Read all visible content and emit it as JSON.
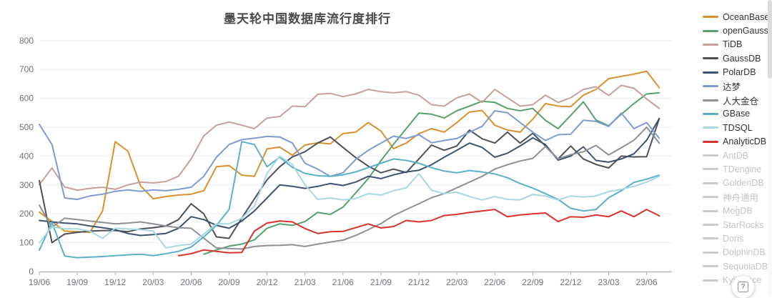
{
  "header": {
    "title": "墨天轮中国数据库流行度排行"
  },
  "help_button": {
    "label": "?"
  },
  "colors": {
    "grid": "#e8eef7",
    "axis": "#aaadb3",
    "tick_label": "#70737a",
    "title": "#4a4a4a",
    "legend_active_text": "#333333",
    "legend_disabled": "#c9cbd0"
  },
  "chart_data": {
    "type": "line",
    "title": "墨天轮中国数据库流行度排行",
    "xlabel": "",
    "ylabel": "",
    "ylim": [
      0,
      800
    ],
    "y_ticks": [
      0,
      100,
      200,
      300,
      400,
      500,
      600,
      700,
      800
    ],
    "grid": true,
    "legend_position": "right",
    "x_tick_labels": [
      "19/06",
      "19/09",
      "19/12",
      "20/03",
      "20/06",
      "20/09",
      "20/12",
      "21/03",
      "21/06",
      "21/09",
      "21/12",
      "22/03",
      "22/06",
      "22/09",
      "22/12",
      "23/03",
      "23/06"
    ],
    "months": [
      "19/06",
      "19/07",
      "19/08",
      "19/09",
      "19/10",
      "19/11",
      "19/12",
      "20/01",
      "20/02",
      "20/03",
      "20/04",
      "20/05",
      "20/06",
      "20/07",
      "20/08",
      "20/09",
      "20/10",
      "20/11",
      "20/12",
      "21/01",
      "21/02",
      "21/03",
      "21/04",
      "21/05",
      "21/06",
      "21/07",
      "21/08",
      "21/09",
      "21/10",
      "21/11",
      "21/12",
      "22/01",
      "22/02",
      "22/03",
      "22/04",
      "22/05",
      "22/06",
      "22/07",
      "22/08",
      "22/09",
      "22/10",
      "22/11",
      "22/12",
      "23/01",
      "23/02",
      "23/03",
      "23/04",
      "23/05",
      "23/06",
      "23/07"
    ],
    "series": [
      {
        "name": "OceanBase",
        "color": "#d9912f",
        "selected": true,
        "values": [
          206,
          173,
          140,
          138,
          136,
          210,
          450,
          417,
          297,
          252,
          260,
          265,
          268,
          280,
          363,
          367,
          334,
          330,
          425,
          431,
          403,
          438,
          446,
          442,
          478,
          483,
          516,
          487,
          426,
          445,
          478,
          495,
          483,
          516,
          553,
          558,
          507,
          490,
          483,
          528,
          582,
          573,
          571,
          611,
          631,
          668,
          676,
          684,
          694,
          637
        ]
      },
      {
        "name": "openGauss",
        "color": "#57a16e",
        "selected": true,
        "values": [
          null,
          null,
          null,
          null,
          null,
          null,
          null,
          null,
          null,
          null,
          null,
          null,
          null,
          60,
          75,
          88,
          95,
          110,
          150,
          165,
          160,
          173,
          205,
          198,
          223,
          272,
          322,
          384,
          441,
          495,
          549,
          545,
          532,
          557,
          573,
          590,
          586,
          565,
          557,
          565,
          524,
          495,
          541,
          588,
          525,
          505,
          545,
          582,
          615,
          619
        ]
      },
      {
        "name": "TiDB",
        "color": "#c6a09b",
        "selected": true,
        "values": [
          301,
          359,
          293,
          282,
          288,
          292,
          285,
          300,
          310,
          307,
          312,
          330,
          390,
          470,
          507,
          518,
          507,
          495,
          532,
          537,
          573,
          571,
          614,
          617,
          606,
          615,
          631,
          623,
          619,
          623,
          611,
          578,
          573,
          602,
          615,
          586,
          631,
          602,
          573,
          578,
          611,
          586,
          602,
          631,
          640,
          610,
          645,
          635,
          598,
          565
        ]
      },
      {
        "name": "GaussDB",
        "color": "#4e5257",
        "selected": true,
        "values": [
          315,
          100,
          130,
          136,
          140,
          142,
          142,
          138,
          148,
          152,
          158,
          180,
          235,
          200,
          120,
          115,
          185,
          252,
          318,
          363,
          397,
          415,
          445,
          466,
          430,
          395,
          365,
          342,
          355,
          343,
          390,
          438,
          420,
          435,
          490,
          460,
          445,
          483,
          445,
          479,
          435,
          390,
          435,
          390,
          371,
          359,
          400,
          397,
          398,
          530
        ]
      },
      {
        "name": "PolarDB",
        "color": "#3d536f",
        "selected": true,
        "values": [
          177,
          172,
          168,
          165,
          158,
          152,
          145,
          132,
          125,
          128,
          132,
          150,
          190,
          180,
          160,
          150,
          175,
          210,
          255,
          300,
          295,
          288,
          295,
          305,
          298,
          310,
          330,
          322,
          335,
          345,
          351,
          370,
          396,
          420,
          445,
          430,
          396,
          410,
          435,
          463,
          440,
          386,
          400,
          432,
          385,
          379,
          390,
          408,
          455,
          530
        ]
      },
      {
        "name": "达梦",
        "color": "#7f9bd2",
        "selected": true,
        "values": [
          510,
          440,
          255,
          250,
          262,
          268,
          278,
          283,
          278,
          283,
          280,
          285,
          292,
          330,
          396,
          440,
          457,
          462,
          468,
          466,
          445,
          375,
          355,
          330,
          342,
          388,
          420,
          445,
          469,
          461,
          474,
          446,
          454,
          461,
          483,
          503,
          557,
          550,
          516,
          483,
          454,
          474,
          476,
          524,
          520,
          503,
          549,
          495,
          516,
          462
        ]
      },
      {
        "name": "人大金仓",
        "color": "#8d9095",
        "selected": true,
        "values": [
          230,
          153,
          185,
          180,
          175,
          170,
          165,
          168,
          172,
          165,
          158,
          152,
          150,
          115,
          82,
          80,
          78,
          87,
          90,
          91,
          93,
          87,
          95,
          102,
          109,
          125,
          145,
          166,
          194,
          215,
          235,
          256,
          270,
          290,
          310,
          330,
          355,
          370,
          383,
          392,
          433,
          390,
          405,
          415,
          437,
          404,
          429,
          455,
          500,
          445
        ]
      },
      {
        "name": "GBase",
        "color": "#5cb0c8",
        "selected": true,
        "values": [
          74,
          170,
          54,
          48,
          50,
          52,
          55,
          58,
          60,
          55,
          62,
          70,
          85,
          120,
          160,
          215,
          450,
          440,
          363,
          396,
          361,
          340,
          332,
          330,
          335,
          345,
          360,
          375,
          390,
          385,
          375,
          360,
          348,
          342,
          350,
          345,
          338,
          325,
          305,
          289,
          270,
          250,
          219,
          210,
          215,
          256,
          280,
          309,
          320,
          334
        ]
      },
      {
        "name": "TDSQL",
        "color": "#a8d8e2",
        "selected": true,
        "values": [
          100,
          155,
          148,
          148,
          140,
          115,
          150,
          148,
          145,
          140,
          82,
          90,
          95,
          130,
          165,
          165,
          185,
          227,
          340,
          400,
          371,
          300,
          250,
          255,
          248,
          253,
          270,
          265,
          280,
          290,
          339,
          282,
          270,
          275,
          260,
          248,
          260,
          250,
          248,
          267,
          262,
          248,
          262,
          258,
          262,
          277,
          285,
          295,
          310,
          330
        ]
      },
      {
        "name": "AnalyticDB",
        "color": "#d8332b",
        "selected": true,
        "values": [
          null,
          null,
          null,
          null,
          null,
          null,
          null,
          null,
          null,
          null,
          null,
          55,
          62,
          75,
          70,
          65,
          66,
          140,
          168,
          175,
          172,
          149,
          132,
          138,
          139,
          152,
          165,
          151,
          156,
          177,
          172,
          177,
          194,
          198,
          205,
          210,
          215,
          190,
          196,
          200,
          203,
          173,
          190,
          188,
          196,
          190,
          210,
          190,
          215,
          193
        ]
      },
      {
        "name": "AntDB",
        "color": null,
        "selected": false,
        "values": null
      },
      {
        "name": "TDengine",
        "color": null,
        "selected": false,
        "values": null
      },
      {
        "name": "GoldenDB",
        "color": null,
        "selected": false,
        "values": null
      },
      {
        "name": "神舟通用",
        "color": null,
        "selected": false,
        "values": null
      },
      {
        "name": "MogDB",
        "color": null,
        "selected": false,
        "values": null
      },
      {
        "name": "StarRocks",
        "color": null,
        "selected": false,
        "values": null
      },
      {
        "name": "Doris",
        "color": null,
        "selected": false,
        "values": null
      },
      {
        "name": "DolphinDB",
        "color": null,
        "selected": false,
        "values": null
      },
      {
        "name": "SequoiaDB",
        "color": null,
        "selected": false,
        "values": null
      },
      {
        "name": "Kyligence",
        "color": null,
        "selected": false,
        "values": null
      }
    ]
  }
}
